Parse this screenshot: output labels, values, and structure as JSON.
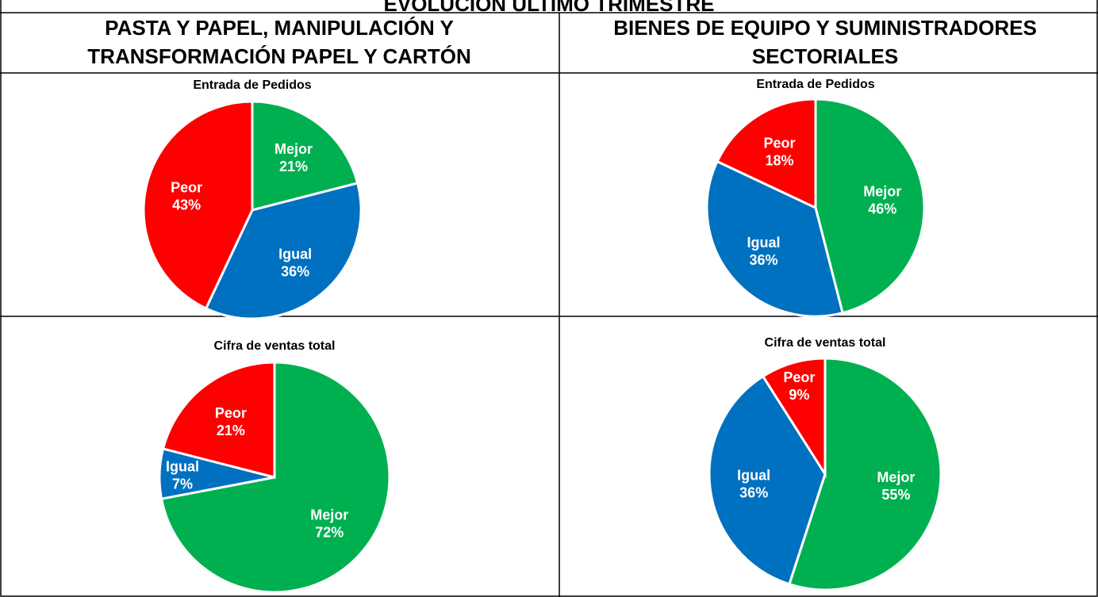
{
  "title": "EVOLUCIÓN ÚLTIMO TRIMESTRE",
  "columns": [
    [
      "PASTA Y PAPEL, MANIPULACIÓN Y",
      "TRANSFORMACIÓN PAPEL Y CARTÓN"
    ],
    [
      "BIENES DE EQUIPO Y SUMINISTRADORES",
      "SECTORIALES"
    ]
  ],
  "chart_data": [
    {
      "type": "pie",
      "title": "Entrada de Pedidos",
      "categories": [
        "Mejor",
        "Igual",
        "Peor"
      ],
      "values": [
        21,
        36,
        43
      ],
      "value_labels": [
        "21%",
        "36%",
        "43%"
      ],
      "colors": [
        "#00b050",
        "#0070c0",
        "#ff0000"
      ]
    },
    {
      "type": "pie",
      "title": "Entrada de Pedidos",
      "categories": [
        "Mejor",
        "Igual",
        "Peor"
      ],
      "values": [
        46,
        36,
        18
      ],
      "value_labels": [
        "46%",
        "36%",
        "18%"
      ],
      "colors": [
        "#00b050",
        "#0070c0",
        "#ff0000"
      ]
    },
    {
      "type": "pie",
      "title": "Cifra de ventas total",
      "categories": [
        "Mejor",
        "Igual",
        "Peor"
      ],
      "values": [
        72,
        7,
        21
      ],
      "value_labels": [
        "72%",
        "7%",
        "21%"
      ],
      "colors": [
        "#00b050",
        "#0070c0",
        "#ff0000"
      ]
    },
    {
      "type": "pie",
      "title": "Cifra de ventas total",
      "categories": [
        "Mejor",
        "Igual",
        "Peor"
      ],
      "values": [
        55,
        36,
        9
      ],
      "value_labels": [
        "55%",
        "36%",
        "9%"
      ],
      "colors": [
        "#00b050",
        "#0070c0",
        "#ff0000"
      ]
    }
  ]
}
